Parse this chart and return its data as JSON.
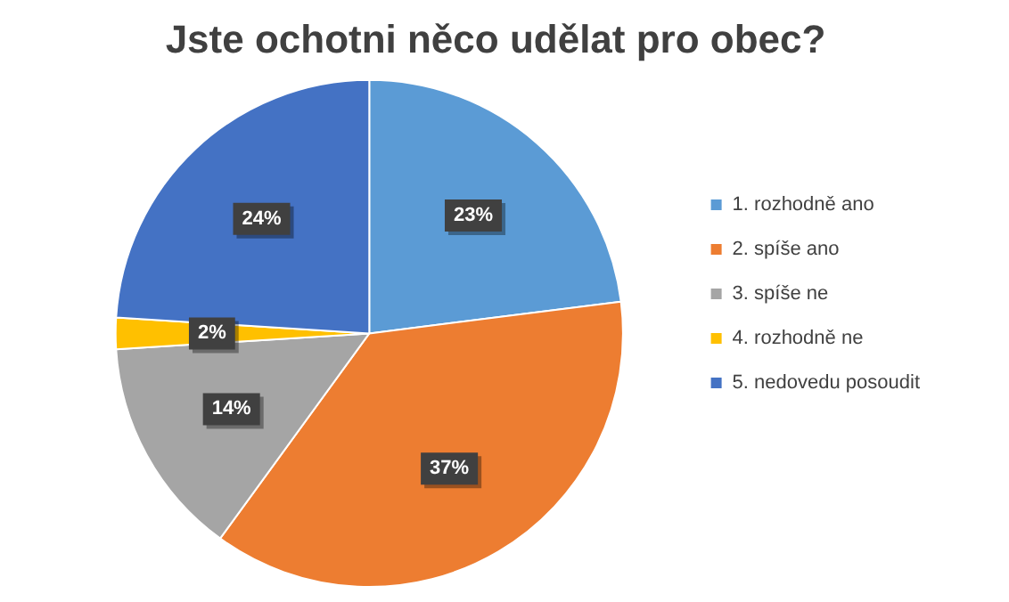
{
  "chart_data": {
    "type": "pie",
    "title": "Jste ochotni něco udělat pro obec?",
    "categories": [
      "1. rozhodně ano",
      "2. spíše ano",
      "3. spíše ne",
      "4. rozhodně ne",
      "5. nedovedu posoudit"
    ],
    "values": [
      23,
      37,
      14,
      2,
      24
    ],
    "colors": [
      "#5b9bd5",
      "#ed7d31",
      "#a5a5a5",
      "#ffc000",
      "#4472c4"
    ],
    "value_labels": [
      "23%",
      "37%",
      "14%",
      "2%",
      "24%"
    ],
    "legend": "right"
  }
}
